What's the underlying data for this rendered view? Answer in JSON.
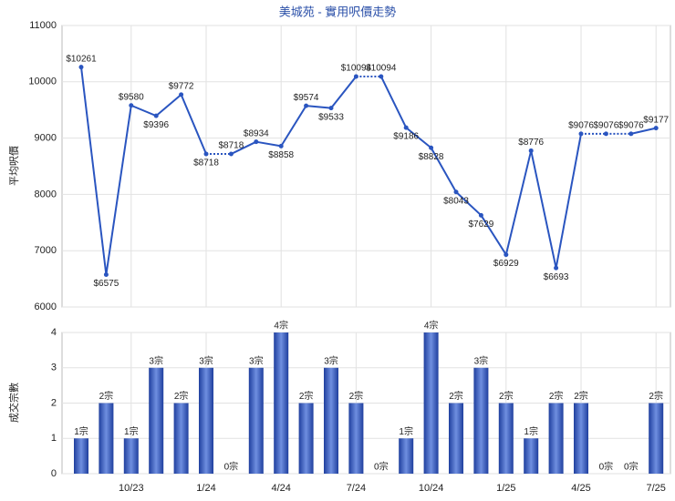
{
  "chart_data": [
    {
      "type": "line",
      "title": "美城苑 - 實用呎價走勢",
      "y_label": "平均呎價",
      "categories": [
        null,
        null,
        "10/23",
        null,
        null,
        "1/24",
        null,
        null,
        "4/24",
        null,
        null,
        "7/24",
        null,
        null,
        "10/24",
        null,
        null,
        "1/25",
        null,
        null,
        "4/25",
        null,
        null,
        "7/25"
      ],
      "values": [
        10261,
        6575,
        9580,
        9396,
        9772,
        8718,
        8718,
        8934,
        8858,
        9574,
        9533,
        10094,
        10094,
        9186,
        8828,
        8043,
        7629,
        6929,
        8776,
        6693,
        9076,
        9076,
        9076,
        9177
      ],
      "value_labels": [
        "$10261",
        "$6575",
        "$9580",
        "$9396",
        "$9772",
        "$8718",
        "$8718",
        "$8934",
        "$8858",
        "$9574",
        "$9533",
        "$10094",
        "$10094",
        "$9186",
        "$8828",
        "$8043",
        "$7629",
        "$6929",
        "$8776",
        "$6693",
        "$9076",
        "$9076",
        "$9076",
        "$9177"
      ],
      "color": "#2a55c0",
      "ylim": [
        6000,
        11000
      ],
      "yticks": [
        6000,
        7000,
        8000,
        9000,
        10000,
        11000
      ],
      "grid": true
    },
    {
      "type": "bar",
      "y_label": "成交宗數",
      "categories": [
        null,
        null,
        "10/23",
        null,
        null,
        "1/24",
        null,
        null,
        "4/24",
        null,
        null,
        "7/24",
        null,
        null,
        "10/24",
        null,
        null,
        "1/25",
        null,
        null,
        "4/25",
        null,
        null,
        "7/25"
      ],
      "values": [
        1,
        2,
        1,
        3,
        2,
        3,
        0,
        3,
        4,
        2,
        3,
        2,
        0,
        1,
        4,
        2,
        3,
        2,
        1,
        2,
        2,
        0,
        0,
        2
      ],
      "value_labels": [
        "1宗",
        "2宗",
        "1宗",
        "3宗",
        "2宗",
        "3宗",
        "0宗",
        "3宗",
        "4宗",
        "2宗",
        "3宗",
        "2宗",
        "0宗",
        "1宗",
        "4宗",
        "2宗",
        "3宗",
        "2宗",
        "1宗",
        "2宗",
        "2宗",
        "0宗",
        "0宗",
        "2宗"
      ],
      "color": "#3355bb",
      "ylim": [
        0,
        4
      ],
      "yticks": [
        0,
        1,
        2,
        3,
        4
      ],
      "grid": true
    }
  ]
}
